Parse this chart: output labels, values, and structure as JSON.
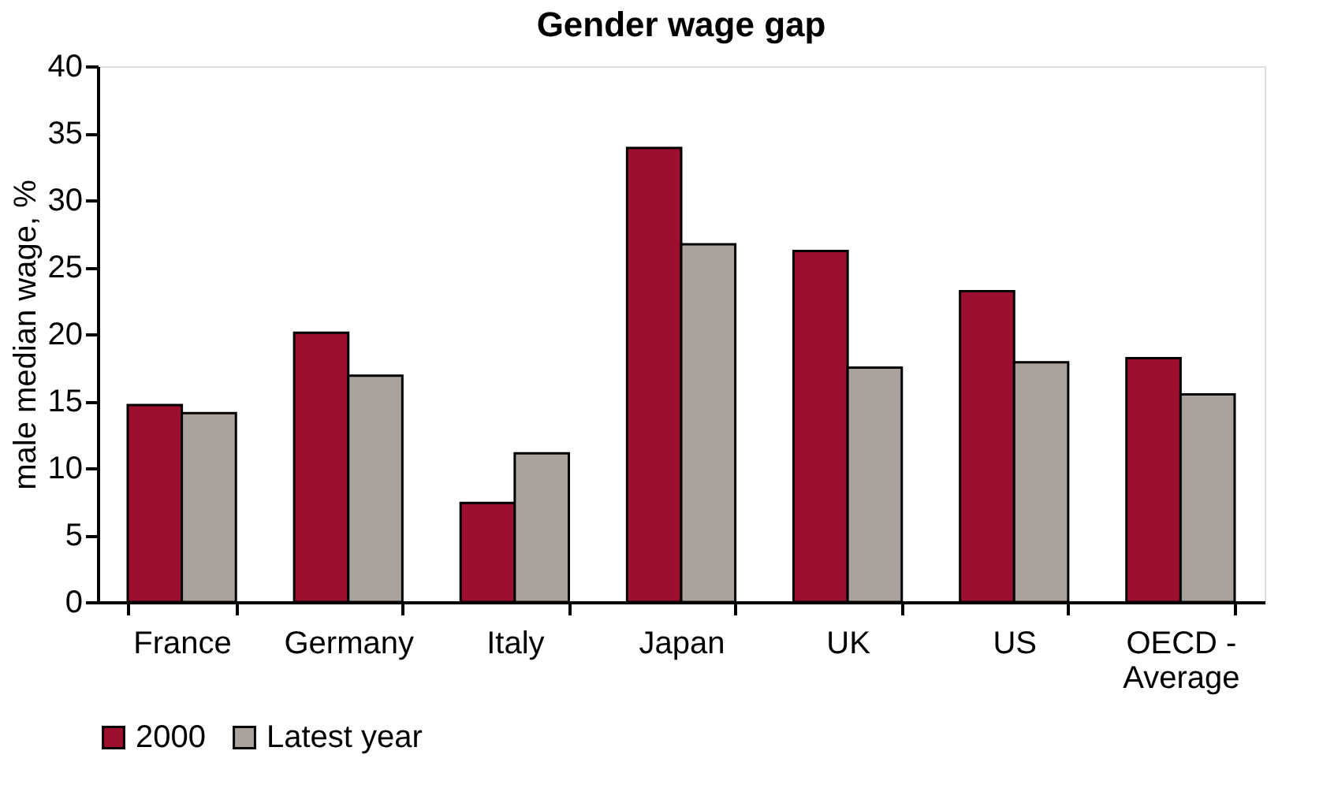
{
  "chart_data": {
    "type": "bar",
    "title": "Gender wage gap",
    "ylabel": "male median wage, %",
    "categories": [
      "France",
      "Germany",
      "Italy",
      "Japan",
      "UK",
      "US",
      "OECD - Average"
    ],
    "series": [
      {
        "name": "2000",
        "color": "#9c0f2e",
        "values": [
          14.7,
          20.1,
          7.4,
          33.9,
          26.2,
          23.2,
          18.2
        ]
      },
      {
        "name": "Latest year",
        "color": "#aaa39d",
        "values": [
          14.1,
          16.9,
          11.1,
          26.7,
          17.5,
          17.9,
          15.5
        ]
      }
    ],
    "ylim": [
      0,
      40
    ],
    "yticks": [
      0,
      5,
      10,
      15,
      20,
      25,
      30,
      35,
      40
    ],
    "grid": false,
    "legend": "bottom"
  }
}
